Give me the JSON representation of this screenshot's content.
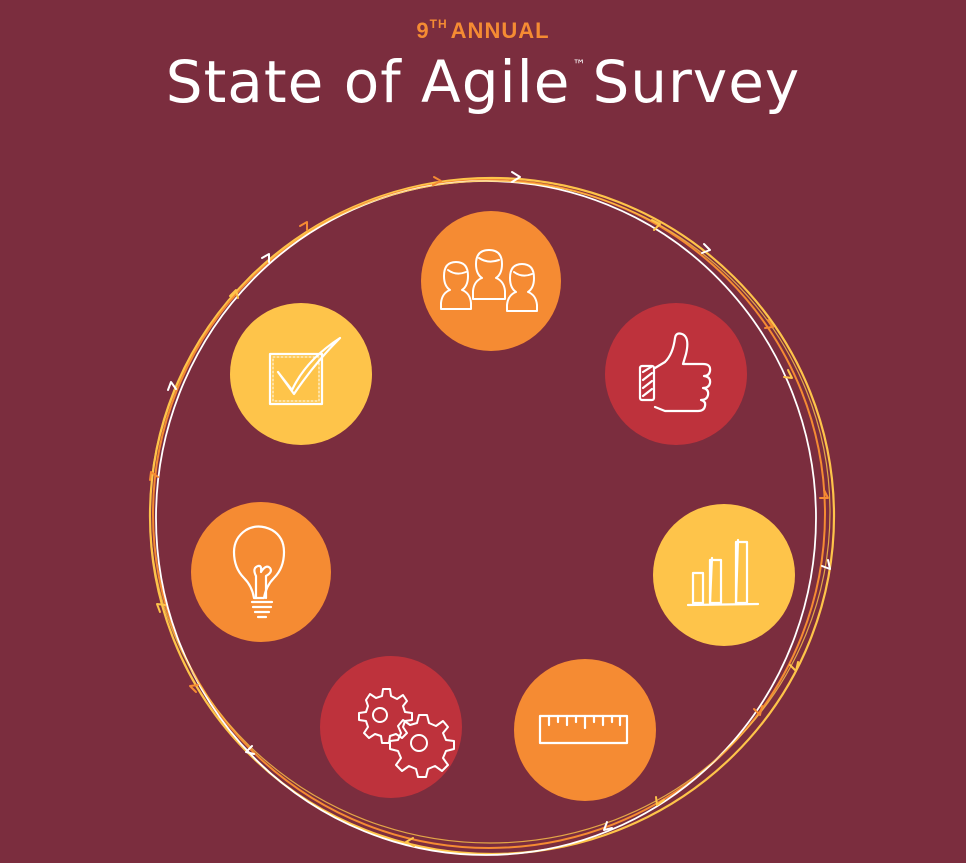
{
  "header": {
    "edition_number": "9",
    "edition_suffix": "TH",
    "edition_label": "ANNUAL",
    "title_part1": "State of Agile",
    "trademark": "™",
    "title_part2": "Survey"
  },
  "colors": {
    "background": "#7b2d3e",
    "orange": "#f58b33",
    "yellow": "#fec44a",
    "red": "#be323c",
    "white": "#ffffff"
  },
  "icons": [
    {
      "name": "team-icon",
      "color": "orange"
    },
    {
      "name": "thumbs-up-icon",
      "color": "red"
    },
    {
      "name": "bar-chart-icon",
      "color": "yellow"
    },
    {
      "name": "ruler-icon",
      "color": "orange"
    },
    {
      "name": "gears-icon",
      "color": "red"
    },
    {
      "name": "lightbulb-icon",
      "color": "orange"
    },
    {
      "name": "checkbox-icon",
      "color": "yellow"
    }
  ]
}
